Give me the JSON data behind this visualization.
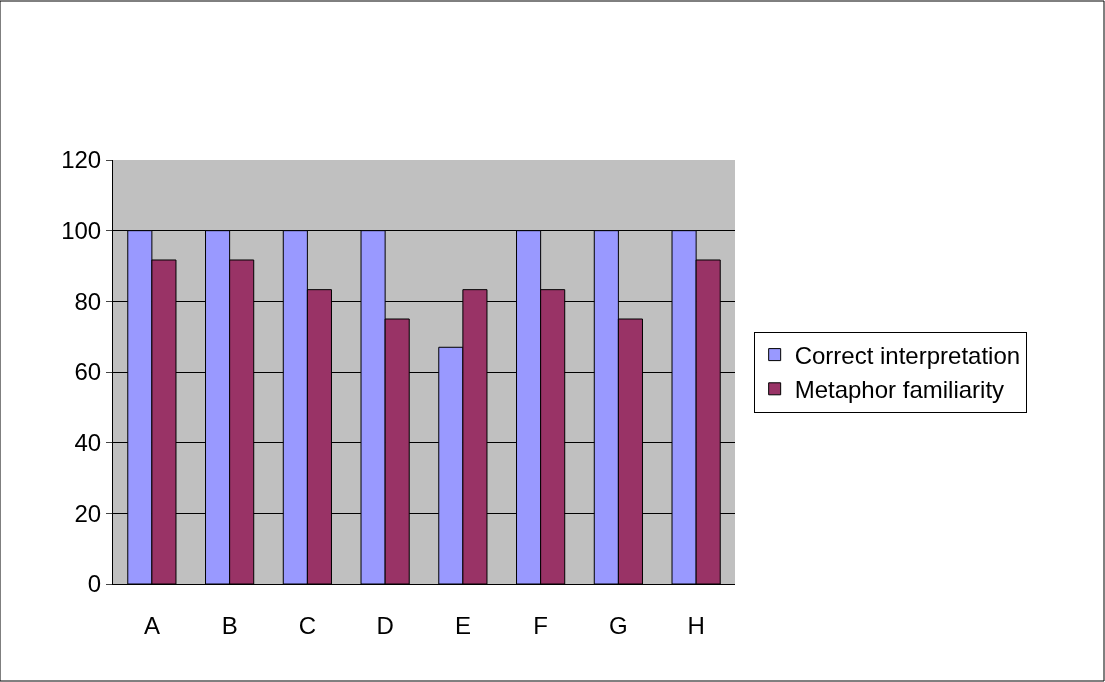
{
  "chart_data": {
    "type": "bar",
    "categories": [
      "A",
      "B",
      "C",
      "D",
      "E",
      "F",
      "G",
      "H"
    ],
    "series": [
      {
        "name": "Correct interpretation",
        "color": "#9999ff",
        "values": [
          100,
          100,
          100,
          100,
          67,
          100,
          100,
          100
        ]
      },
      {
        "name": "Metaphor familiarity",
        "color": "#993366",
        "values": [
          91.7,
          91.7,
          83.3,
          75,
          83.3,
          83.3,
          75,
          91.7
        ]
      }
    ],
    "ylim": [
      0,
      120
    ],
    "yticks": [
      0,
      20,
      40,
      60,
      80,
      100,
      120
    ],
    "grid": "y",
    "legend": "right"
  }
}
